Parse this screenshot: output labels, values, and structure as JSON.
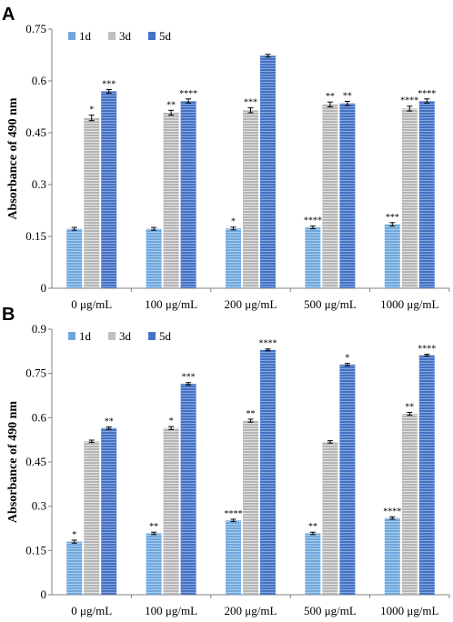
{
  "chart_data": [
    {
      "type": "bar",
      "panel": "A",
      "ylabel": "Absorbance of 490 nm",
      "ylim": [
        0,
        0.75
      ],
      "yticks": [
        "0",
        "0.15",
        "0.3",
        "0.45",
        "0.6",
        "0.75"
      ],
      "categories": [
        "0 μg/mL",
        "100 μg/mL",
        "200 μg/mL",
        "500 μg/mL",
        "1000 μg/mL"
      ],
      "legend_position": "top-left",
      "series": [
        {
          "name": "1d",
          "color": "#6fa8dc",
          "values": [
            0.172,
            0.172,
            0.173,
            0.176,
            0.185
          ],
          "errors": [
            0.004,
            0.004,
            0.004,
            0.004,
            0.005
          ],
          "sig": [
            "",
            "",
            "*",
            "****",
            "***"
          ]
        },
        {
          "name": "3d",
          "color": "#bfbfbf",
          "values": [
            0.493,
            0.508,
            0.515,
            0.532,
            0.52
          ],
          "errors": [
            0.008,
            0.007,
            0.007,
            0.007,
            0.007
          ],
          "sig": [
            "*",
            "**",
            "***",
            "**",
            "****"
          ]
        },
        {
          "name": "5d",
          "color": "#4472c4",
          "values": [
            0.57,
            0.542,
            0.673,
            0.535,
            0.542
          ],
          "errors": [
            0.005,
            0.006,
            0.004,
            0.006,
            0.006
          ],
          "sig": [
            "***",
            "****",
            "",
            "**",
            "****"
          ]
        }
      ]
    },
    {
      "type": "bar",
      "panel": "B",
      "ylabel": "Absorbance of 490 nm",
      "ylim": [
        0,
        0.9
      ],
      "yticks": [
        "0",
        "0.15",
        "0.3",
        "0.45",
        "0.6",
        "0.75",
        "0.9"
      ],
      "categories": [
        "0 μg/mL",
        "100 μg/mL",
        "200 μg/mL",
        "500 μg/mL",
        "1000 μg/mL"
      ],
      "legend_position": "top-left",
      "series": [
        {
          "name": "1d",
          "color": "#6fa8dc",
          "values": [
            0.18,
            0.208,
            0.252,
            0.208,
            0.26
          ],
          "errors": [
            0.005,
            0.004,
            0.004,
            0.004,
            0.004
          ],
          "sig": [
            "*",
            "**",
            "****",
            "**",
            "****"
          ]
        },
        {
          "name": "3d",
          "color": "#bfbfbf",
          "values": [
            0.52,
            0.565,
            0.59,
            0.518,
            0.613
          ],
          "errors": [
            0.004,
            0.005,
            0.005,
            0.004,
            0.005
          ],
          "sig": [
            "",
            "*",
            "**",
            "",
            "**"
          ]
        },
        {
          "name": "5d",
          "color": "#4472c4",
          "values": [
            0.565,
            0.715,
            0.83,
            0.78,
            0.812
          ],
          "errors": [
            0.004,
            0.004,
            0.003,
            0.004,
            0.003
          ],
          "sig": [
            "**",
            "***",
            "****",
            "*",
            "****"
          ]
        }
      ]
    }
  ]
}
